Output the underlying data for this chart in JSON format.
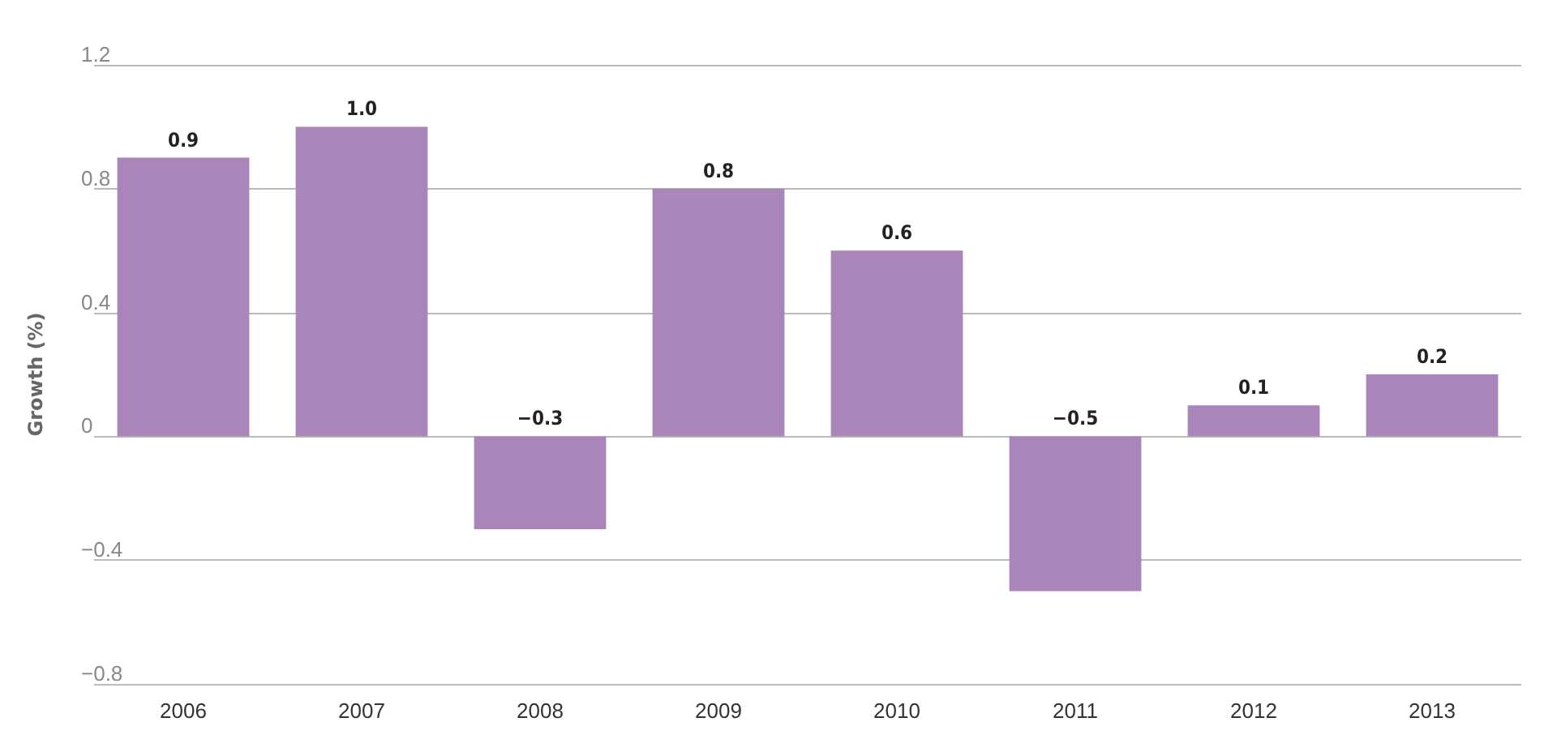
{
  "chart_data": {
    "type": "bar",
    "ylabel": "Growth (%)",
    "categories": [
      "2006",
      "2007",
      "2008",
      "2009",
      "2010",
      "2011",
      "2012",
      "2013"
    ],
    "values": [
      0.9,
      1.0,
      -0.3,
      0.8,
      0.6,
      -0.5,
      0.1,
      0.2
    ],
    "value_labels": [
      "0.9",
      "1.0",
      "−0.3",
      "0.8",
      "0.6",
      "−0.5",
      "0.1",
      "0.2"
    ],
    "color": "#a985b9",
    "ylim": [
      -0.8,
      1.2
    ],
    "yticks": [
      {
        "value": -0.8,
        "label": "−0.8"
      },
      {
        "value": -0.4,
        "label": "−0.4"
      },
      0,
      0.4,
      0.8,
      1.2
    ],
    "grid": "y"
  }
}
